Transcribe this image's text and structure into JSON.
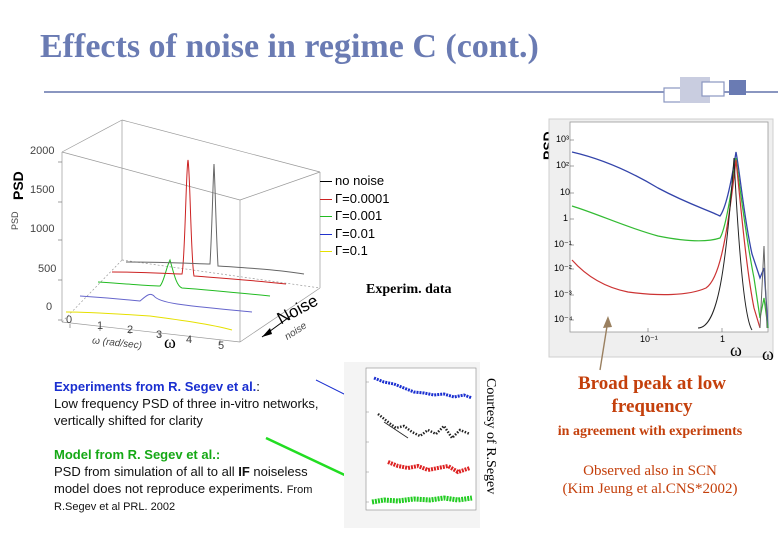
{
  "slide": {
    "title": "Effects of noise in regime C (cont.)"
  },
  "plot3d": {
    "psd_label": "PSD",
    "z_axis_label": "PSD",
    "z_ticks": [
      "2000",
      "1500",
      "1000",
      "500",
      "0"
    ],
    "x_axis_label": "ω (rad/sec)",
    "x_ticks": [
      "0",
      "1",
      "2",
      "3",
      "4",
      "5"
    ],
    "depth_axis_label": "noise",
    "noise_label": "Noise",
    "omega_label": "ω",
    "legend": [
      {
        "label": "no noise",
        "color": "#000000"
      },
      {
        "label": "Γ=0.0001",
        "color": "#cc2222"
      },
      {
        "label": "Γ=0.001",
        "color": "#22bb22"
      },
      {
        "label": "Γ=0.01",
        "color": "#2233cc"
      },
      {
        "label": "Γ=0.1",
        "color": "#e6e000"
      }
    ]
  },
  "exp_data_label": "Experim. data",
  "plot_right": {
    "psd_label": "PSD",
    "y_ticks": [
      "10³",
      "10²",
      "10",
      "1",
      "10⁻¹",
      "10⁻²",
      "10⁻³",
      "10⁻⁴"
    ],
    "x_ticks": [
      "10⁻¹",
      "1"
    ],
    "omega_below": "ω",
    "omega_side": "ω"
  },
  "experiments": {
    "heading": "Experiments from R. Segev et al.",
    "heading_colon": ":",
    "line1": "Low frequency PSD of three in-vitro networks,",
    "line2": "vertically shifted for clarity"
  },
  "model": {
    "heading": "Model from R. Segev et al.:",
    "line1_pre": "PSD from simulation of all to all ",
    "line1_bold": "IF",
    "line1_post": " noiseless",
    "line2_pre": "model does not reproduce experiments. ",
    "line2_small": "From",
    "line3": "R.Segev et al  PRL. 2002"
  },
  "courtesy": "Courtesy of R.Segev",
  "broad_peak": {
    "line1": "Broad peak at low",
    "line2": "frequency"
  },
  "agreement": "in agreement with experiments",
  "observed": {
    "line1": "Observed also in SCN",
    "line2": "(Kim Jeung et al.CNS*2002)"
  },
  "colors": {
    "title": "#6a7bb3",
    "accent_orange": "#c4400c",
    "heading_blue": "#1a2fd0",
    "heading_green": "#15a815"
  }
}
